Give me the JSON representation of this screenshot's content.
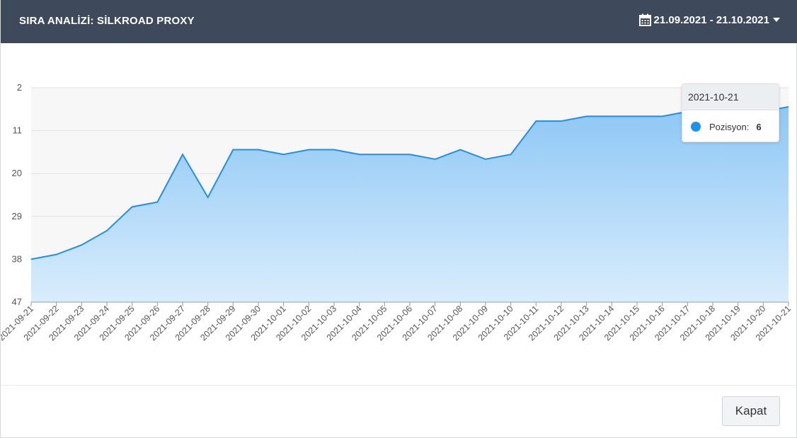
{
  "header": {
    "title": "SIRA ANALİZİ: SİLKROAD PROXY",
    "date_range": "21.09.2021 - 21.10.2021",
    "calendar_icon": "calendar-icon",
    "caret_icon": "caret-down-icon"
  },
  "tooltip": {
    "date": "2021-10-21",
    "label": "Pozisyon:",
    "value": "6"
  },
  "footer": {
    "close_label": "Kapat"
  },
  "colors": {
    "header_bg": "#3e4a5b",
    "line": "#1e90f0",
    "area_top": "#8ec7f5",
    "area_bottom": "#d9edfc"
  },
  "chart_data": {
    "type": "area",
    "title": "",
    "xlabel": "",
    "ylabel": "",
    "y_reversed": true,
    "ylim": [
      2,
      47
    ],
    "yticks": [
      2,
      11,
      20,
      29,
      38,
      47
    ],
    "grid": true,
    "categories": [
      "2021-09-21",
      "2021-09-22",
      "2021-09-23",
      "2021-09-24",
      "2021-09-25",
      "2021-09-26",
      "2021-09-27",
      "2021-09-28",
      "2021-09-29",
      "2021-09-30",
      "2021-10-01",
      "2021-10-02",
      "2021-10-03",
      "2021-10-04",
      "2021-10-05",
      "2021-10-06",
      "2021-10-07",
      "2021-10-08",
      "2021-10-09",
      "2021-10-10",
      "2021-10-11",
      "2021-10-12",
      "2021-10-13",
      "2021-10-14",
      "2021-10-15",
      "2021-10-16",
      "2021-10-17",
      "2021-10-18",
      "2021-10-19",
      "2021-10-20",
      "2021-10-21"
    ],
    "series": [
      {
        "name": "Pozisyon",
        "values": [
          38,
          37,
          35,
          32,
          27,
          26,
          16,
          25,
          15,
          15,
          16,
          15,
          15,
          16,
          16,
          16,
          17,
          15,
          17,
          16,
          9,
          9,
          8,
          8,
          8,
          8,
          7,
          7,
          7,
          7,
          6
        ]
      }
    ]
  }
}
